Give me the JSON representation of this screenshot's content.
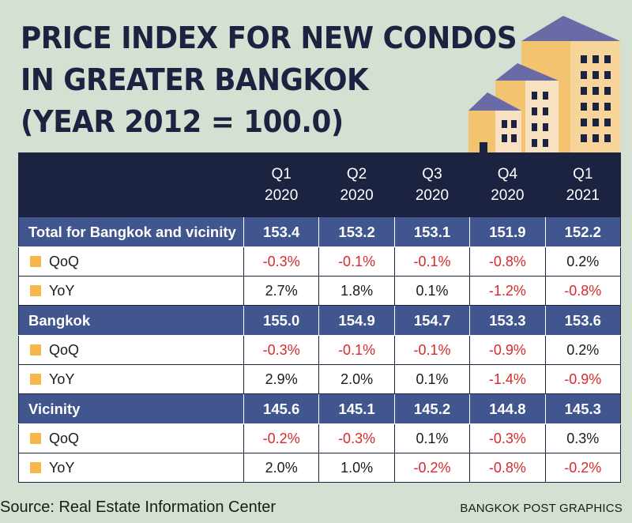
{
  "title_lines": [
    "PRICE INDEX FOR NEW CONDOS",
    "IN GREATER BANGKOK",
    "(YEAR 2012 = 100.0)"
  ],
  "source": "Source: Real Estate Information Center",
  "credit": "BANGKOK POST GRAPHICS",
  "colors": {
    "background": "#d3e0d2",
    "header": "#1b2340",
    "group_row": "#41568f",
    "marker": "#f5b74a",
    "negative": "#d62b2b"
  },
  "chart_data": {
    "type": "table",
    "columns": [
      {
        "line1": "Q1",
        "line2": "2020"
      },
      {
        "line1": "Q2",
        "line2": "2020"
      },
      {
        "line1": "Q3",
        "line2": "2020"
      },
      {
        "line1": "Q4",
        "line2": "2020"
      },
      {
        "line1": "Q1",
        "line2": "2021"
      }
    ],
    "groups": [
      {
        "name": "Total for Bangkok and vicinity",
        "index": [
          "153.4",
          "153.2",
          "153.1",
          "151.9",
          "152.2"
        ],
        "rows": [
          {
            "label": "QoQ",
            "values": [
              "-0.3%",
              "-0.1%",
              "-0.1%",
              "-0.8%",
              "0.2%"
            ]
          },
          {
            "label": "YoY",
            "values": [
              "2.7%",
              "1.8%",
              "0.1%",
              "-1.2%",
              "-0.8%"
            ]
          }
        ]
      },
      {
        "name": "Bangkok",
        "index": [
          "155.0",
          "154.9",
          "154.7",
          "153.3",
          "153.6"
        ],
        "rows": [
          {
            "label": "QoQ",
            "values": [
              "-0.3%",
              "-0.1%",
              "-0.1%",
              "-0.9%",
              "0.2%"
            ]
          },
          {
            "label": "YoY",
            "values": [
              "2.9%",
              "2.0%",
              "0.1%",
              "-1.4%",
              "-0.9%"
            ]
          }
        ]
      },
      {
        "name": "Vicinity",
        "index": [
          "145.6",
          "145.1",
          "145.2",
          "144.8",
          "145.3"
        ],
        "rows": [
          {
            "label": "QoQ",
            "values": [
              "-0.2%",
              "-0.3%",
              "0.1%",
              "-0.3%",
              "0.3%"
            ]
          },
          {
            "label": "YoY",
            "values": [
              "2.0%",
              "1.0%",
              "-0.2%",
              "-0.8%",
              "-0.2%"
            ]
          }
        ]
      }
    ]
  }
}
